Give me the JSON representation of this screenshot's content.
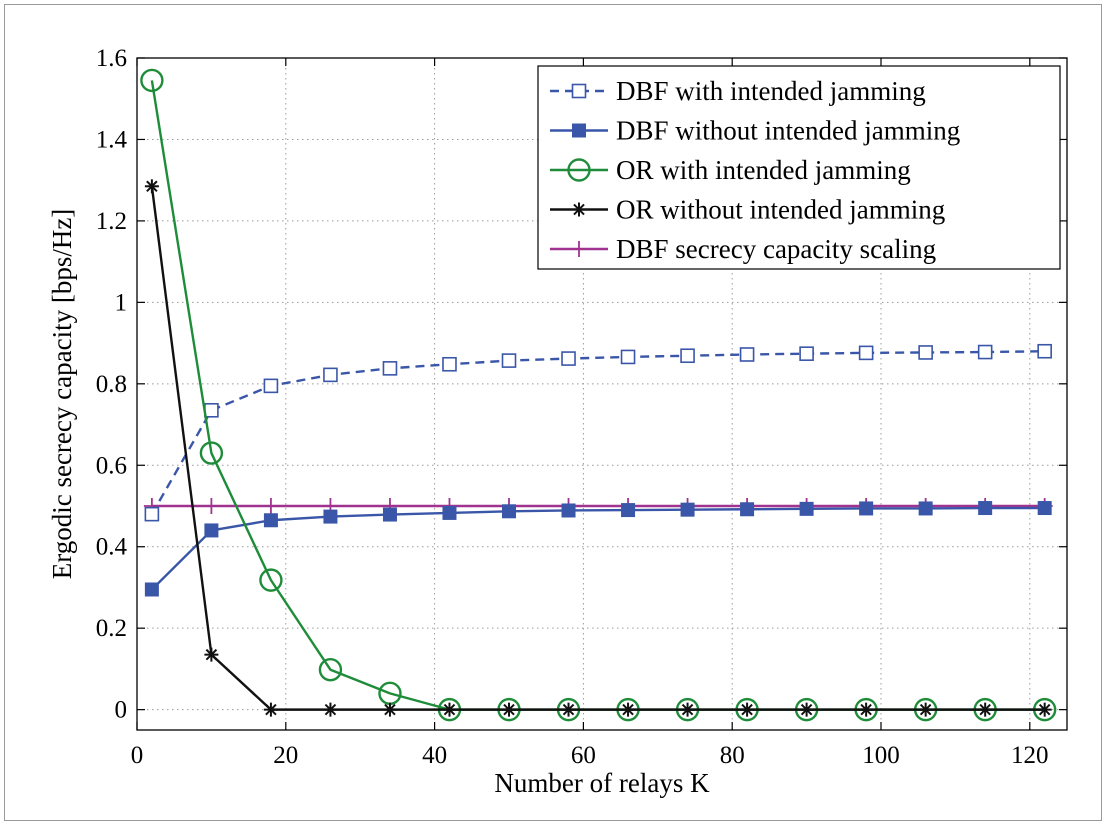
{
  "chart_data": {
    "type": "line",
    "title": "",
    "xlabel": "Number of relays K",
    "ylabel": "Ergodic secrecy capacity [bps/Hz]",
    "xlim": [
      0,
      125
    ],
    "ylim": [
      -0.05,
      1.6
    ],
    "xticks": [
      0,
      20,
      40,
      60,
      80,
      100,
      120
    ],
    "xtick_labels": [
      "0",
      "20",
      "40",
      "60",
      "80",
      "100",
      "120"
    ],
    "yticks": [
      0,
      0.2,
      0.4,
      0.6,
      0.8,
      1.0,
      1.2,
      1.4,
      1.6
    ],
    "ytick_labels": [
      "0",
      "0.2",
      "0.4",
      "0.6",
      "0.8",
      "1",
      "1.2",
      "1.4",
      "1.6"
    ],
    "grid": true,
    "legend_position": "top-right",
    "x": [
      2,
      10,
      18,
      26,
      34,
      42,
      50,
      58,
      66,
      74,
      82,
      90,
      98,
      106,
      114,
      122
    ],
    "series": [
      {
        "name": "DBF with intended jamming",
        "color": "#3a56a8",
        "dash": "dashed",
        "marker": "square-open",
        "values": [
          0.48,
          0.735,
          0.795,
          0.822,
          0.838,
          0.848,
          0.857,
          0.862,
          0.866,
          0.869,
          0.872,
          0.874,
          0.876,
          0.877,
          0.878,
          0.88
        ]
      },
      {
        "name": "DBF without intended jamming",
        "color": "#3a56a8",
        "dash": "solid",
        "marker": "square-filled",
        "values": [
          0.295,
          0.44,
          0.465,
          0.474,
          0.479,
          0.483,
          0.487,
          0.489,
          0.49,
          0.491,
          0.492,
          0.493,
          0.494,
          0.494,
          0.495,
          0.495
        ]
      },
      {
        "name": "OR with intended jamming",
        "color": "#1f8c3a",
        "dash": "solid",
        "marker": "circle-open",
        "values": [
          1.545,
          0.63,
          0.318,
          0.098,
          0.04,
          0,
          0,
          0,
          0,
          0,
          0,
          0,
          0,
          0,
          0,
          0
        ]
      },
      {
        "name": "OR without intended jamming",
        "color": "#111111",
        "dash": "solid",
        "marker": "asterisk",
        "values": [
          1.285,
          0.135,
          0,
          0,
          0,
          0,
          0,
          0,
          0,
          0,
          0,
          0,
          0,
          0,
          0,
          0
        ]
      },
      {
        "name": "DBF secrecy capacity scaling",
        "color": "#a0338f",
        "dash": "solid",
        "marker": "plus",
        "values": [
          0.5,
          0.5,
          0.5,
          0.5,
          0.5,
          0.5,
          0.5,
          0.5,
          0.5,
          0.5,
          0.5,
          0.5,
          0.5,
          0.5,
          0.5,
          0.5
        ]
      }
    ]
  }
}
